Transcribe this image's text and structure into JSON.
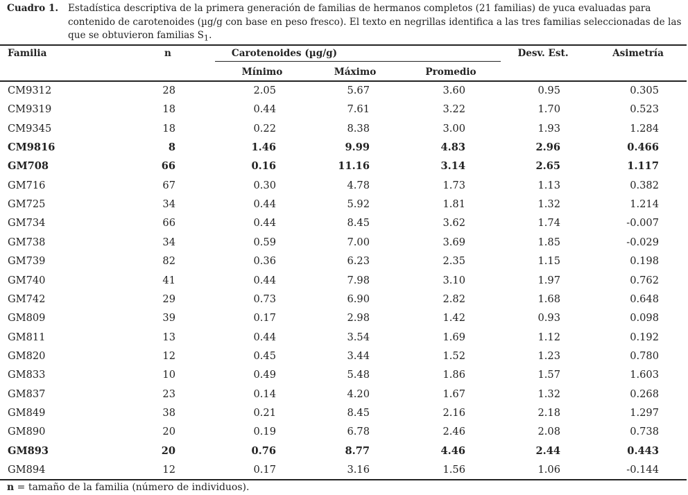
{
  "caption": {
    "label": "Cuadro 1.",
    "text": "Estadística descriptiva de la primera generación de familias de hermanos completos (21 familias) de yuca evaluadas para contenido de carotenoides (µg/g con base en peso fresco). El texto en negrillas identifica a las tres familias seleccionadas de las que se obtuvieron familias S",
    "subscript": "1",
    "end": "."
  },
  "headers": {
    "familia": "Familia",
    "n": "n",
    "carotenoides": "Carotenoides (µg/g)",
    "minimo": "Mínimo",
    "maximo": "Máximo",
    "promedio": "Promedio",
    "desv": "Desv. Est.",
    "asimetria": "Asimetría"
  },
  "rows": [
    {
      "familia": "CM9312",
      "n": "28",
      "min": "2.05",
      "max": "5.67",
      "prom": "3.60",
      "desv": "0.95",
      "asim": "0.305",
      "bold": false
    },
    {
      "familia": "CM9319",
      "n": "18",
      "min": "0.44",
      "max": "7.61",
      "prom": "3.22",
      "desv": "1.70",
      "asim": "0.523",
      "bold": false
    },
    {
      "familia": "CM9345",
      "n": "18",
      "min": "0.22",
      "max": "8.38",
      "prom": "3.00",
      "desv": "1.93",
      "asim": "1.284",
      "bold": false
    },
    {
      "familia": "CM9816",
      "n": "8",
      "min": "1.46",
      "max": "9.99",
      "prom": "4.83",
      "desv": "2.96",
      "asim": "0.466",
      "bold": true
    },
    {
      "familia": "GM708",
      "n": "66",
      "min": "0.16",
      "max": "11.16",
      "prom": "3.14",
      "desv": "2.65",
      "asim": "1.117",
      "bold": true
    },
    {
      "familia": "GM716",
      "n": "67",
      "min": "0.30",
      "max": "4.78",
      "prom": "1.73",
      "desv": "1.13",
      "asim": "0.382",
      "bold": false
    },
    {
      "familia": "GM725",
      "n": "34",
      "min": "0.44",
      "max": "5.92",
      "prom": "1.81",
      "desv": "1.32",
      "asim": "1.214",
      "bold": false
    },
    {
      "familia": "GM734",
      "n": "66",
      "min": "0.44",
      "max": "8.45",
      "prom": "3.62",
      "desv": "1.74",
      "asim": "-0.007",
      "bold": false
    },
    {
      "familia": "GM738",
      "n": "34",
      "min": "0.59",
      "max": "7.00",
      "prom": "3.69",
      "desv": "1.85",
      "asim": "-0.029",
      "bold": false
    },
    {
      "familia": "GM739",
      "n": "82",
      "min": "0.36",
      "max": "6.23",
      "prom": "2.35",
      "desv": "1.15",
      "asim": "0.198",
      "bold": false
    },
    {
      "familia": "GM740",
      "n": "41",
      "min": "0.44",
      "max": "7.98",
      "prom": "3.10",
      "desv": "1.97",
      "asim": "0.762",
      "bold": false
    },
    {
      "familia": "GM742",
      "n": "29",
      "min": "0.73",
      "max": "6.90",
      "prom": "2.82",
      "desv": "1.68",
      "asim": "0.648",
      "bold": false
    },
    {
      "familia": "GM809",
      "n": "39",
      "min": "0.17",
      "max": "2.98",
      "prom": "1.42",
      "desv": "0.93",
      "asim": "0.098",
      "bold": false
    },
    {
      "familia": "GM811",
      "n": "13",
      "min": "0.44",
      "max": "3.54",
      "prom": "1.69",
      "desv": "1.12",
      "asim": "0.192",
      "bold": false
    },
    {
      "familia": "GM820",
      "n": "12",
      "min": "0.45",
      "max": "3.44",
      "prom": "1.52",
      "desv": "1.23",
      "asim": "0.780",
      "bold": false
    },
    {
      "familia": "GM833",
      "n": "10",
      "min": "0.49",
      "max": "5.48",
      "prom": "1.86",
      "desv": "1.57",
      "asim": "1.603",
      "bold": false
    },
    {
      "familia": "GM837",
      "n": "23",
      "min": "0.14",
      "max": "4.20",
      "prom": "1.67",
      "desv": "1.32",
      "asim": "0.268",
      "bold": false
    },
    {
      "familia": "GM849",
      "n": "38",
      "min": "0.21",
      "max": "8.45",
      "prom": "2.16",
      "desv": "2.18",
      "asim": "1.297",
      "bold": false
    },
    {
      "familia": "GM890",
      "n": "20",
      "min": "0.19",
      "max": "6.78",
      "prom": "2.46",
      "desv": "2.08",
      "asim": "0.738",
      "bold": false
    },
    {
      "familia": "GM893",
      "n": "20",
      "min": "0.76",
      "max": "8.77",
      "prom": "4.46",
      "desv": "2.44",
      "asim": "0.443",
      "bold": true
    },
    {
      "familia": "GM894",
      "n": "12",
      "min": "0.17",
      "max": "3.16",
      "prom": "1.56",
      "desv": "1.06",
      "asim": "-0.144",
      "bold": false
    }
  ],
  "footnote": {
    "symbol": "n",
    "text": " = tamaño de la familia (número de individuos)."
  }
}
